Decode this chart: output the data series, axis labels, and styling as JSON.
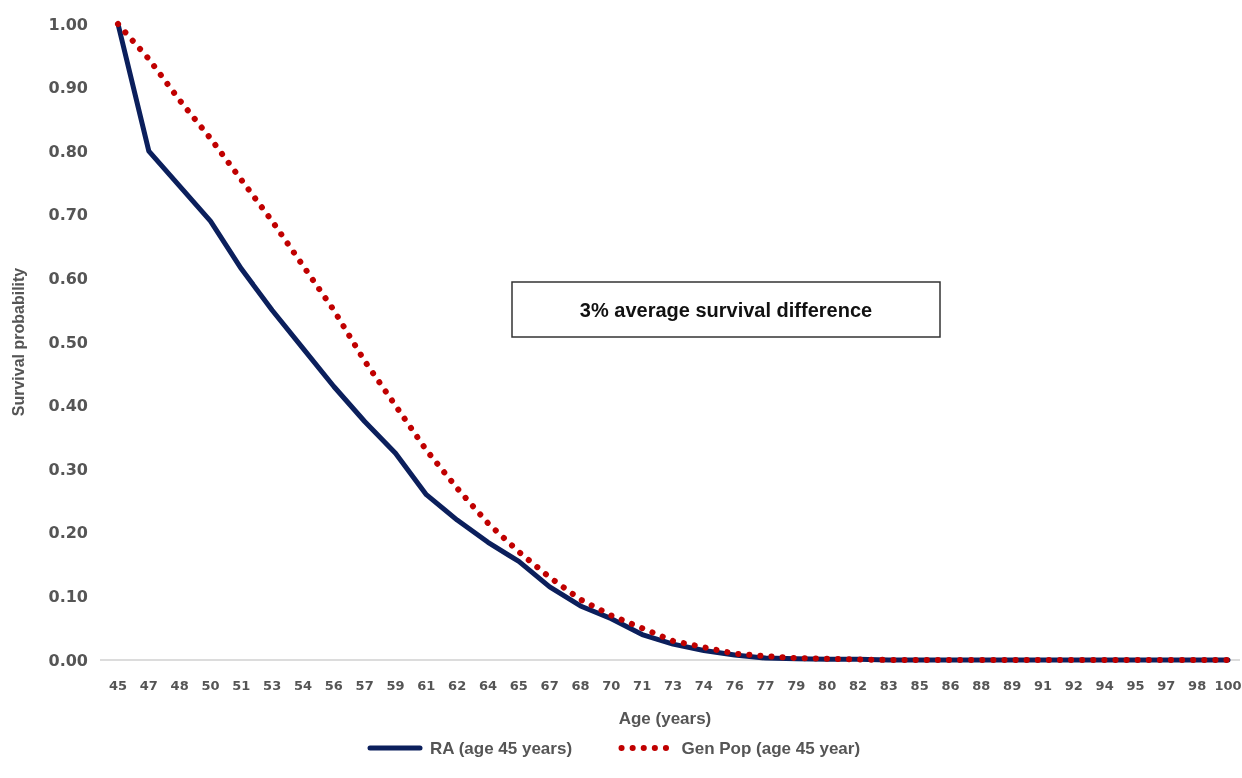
{
  "chart_data": {
    "type": "line",
    "xlabel": "Age (years)",
    "ylabel": "Survival probability",
    "categories": [
      "45",
      "47",
      "48",
      "50",
      "51",
      "53",
      "54",
      "56",
      "57",
      "59",
      "61",
      "62",
      "64",
      "65",
      "67",
      "68",
      "70",
      "71",
      "73",
      "74",
      "76",
      "77",
      "79",
      "80",
      "82",
      "83",
      "85",
      "86",
      "88",
      "89",
      "91",
      "92",
      "94",
      "95",
      "97",
      "98",
      "100"
    ],
    "ylim": [
      0,
      1
    ],
    "yticks": [
      {
        "value": 0,
        "label": "0.00"
      },
      {
        "value": 0.1,
        "label": "0.10"
      },
      {
        "value": 0.2,
        "label": "0.20"
      },
      {
        "value": 0.3,
        "label": "0.30"
      },
      {
        "value": 0.4,
        "label": "0.40"
      },
      {
        "value": 0.5,
        "label": "0.50"
      },
      {
        "value": 0.6,
        "label": "0.60"
      },
      {
        "value": 0.7,
        "label": "0.70"
      },
      {
        "value": 0.8,
        "label": "0.80"
      },
      {
        "value": 0.9,
        "label": "0.90"
      },
      {
        "value": 1,
        "label": "1.00"
      }
    ],
    "series": [
      {
        "name": "RA (age 45 years)",
        "color": "#0b1f5c",
        "line_style": "solid",
        "values": [
          1.0,
          0.8,
          0.745,
          0.69,
          0.615,
          0.55,
          0.49,
          0.43,
          0.375,
          0.325,
          0.26,
          0.22,
          0.185,
          0.155,
          0.115,
          0.085,
          0.065,
          0.04,
          0.025,
          0.015,
          0.008,
          0.003,
          0.002,
          0.001,
          0.001,
          0,
          0,
          0,
          0,
          0,
          0,
          0,
          0,
          0,
          0,
          0,
          0
        ]
      },
      {
        "name": "Gen Pop (age 45 year)",
        "color": "#c00000",
        "line_style": "dotted",
        "values": [
          1.0,
          0.945,
          0.88,
          0.82,
          0.755,
          0.69,
          0.62,
          0.55,
          0.47,
          0.4,
          0.33,
          0.27,
          0.215,
          0.17,
          0.13,
          0.095,
          0.07,
          0.05,
          0.03,
          0.02,
          0.01,
          0.006,
          0.003,
          0.002,
          0.001,
          0,
          0,
          0,
          0,
          0,
          0,
          0,
          0,
          0,
          0,
          0,
          0
        ]
      }
    ],
    "annotations": [
      "3% average survival difference"
    ],
    "grid": false,
    "legend": "bottom",
    "marker": "none"
  }
}
